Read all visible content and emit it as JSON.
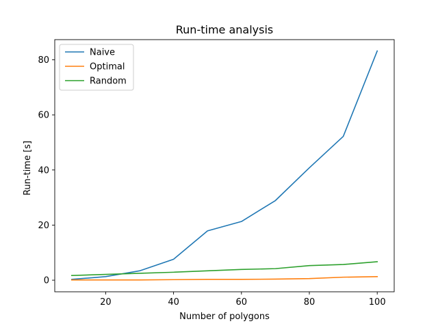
{
  "chart_data": {
    "type": "line",
    "title": "Run-time analysis",
    "xlabel": "Number of polygons",
    "ylabel": "Run-time [s]",
    "x": [
      10,
      20,
      30,
      40,
      50,
      60,
      70,
      80,
      90,
      100
    ],
    "xlim": [
      5,
      105
    ],
    "ylim": [
      -4.2,
      87.3
    ],
    "xticks": [
      20,
      40,
      60,
      80,
      100
    ],
    "yticks": [
      0,
      20,
      40,
      60,
      80
    ],
    "grid": false,
    "legend_position": "top-left",
    "series": [
      {
        "name": "Naive",
        "color": "#1f77b4",
        "values": [
          0.3,
          1.3,
          3.4,
          7.6,
          17.9,
          21.3,
          28.9,
          40.8,
          52.2,
          83.2
        ]
      },
      {
        "name": "Optimal",
        "color": "#ff7f0e",
        "values": [
          0.1,
          0.1,
          0.1,
          0.2,
          0.3,
          0.3,
          0.4,
          0.6,
          1.1,
          1.3
        ]
      },
      {
        "name": "Random",
        "color": "#2ca02c",
        "values": [
          1.7,
          2.1,
          2.5,
          2.9,
          3.4,
          3.9,
          4.2,
          5.3,
          5.7,
          6.7
        ]
      }
    ]
  }
}
